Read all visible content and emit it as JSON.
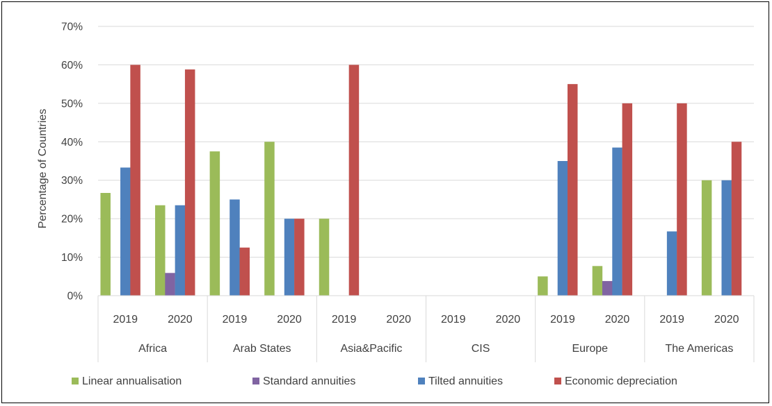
{
  "chart_data": {
    "type": "bar",
    "ylabel": "Percentage of Countries",
    "ylim": [
      0,
      70
    ],
    "yticks": [
      "0%",
      "10%",
      "20%",
      "30%",
      "40%",
      "50%",
      "60%",
      "70%"
    ],
    "ytick_values": [
      0,
      10,
      20,
      30,
      40,
      50,
      60,
      70
    ],
    "grid": true,
    "legend_position": "bottom",
    "groups": [
      {
        "name": "Africa",
        "categories": [
          "2019",
          "2020"
        ]
      },
      {
        "name": "Arab States",
        "categories": [
          "2019",
          "2020"
        ]
      },
      {
        "name": "Asia&Pacific",
        "categories": [
          "2019",
          "2020"
        ]
      },
      {
        "name": "CIS",
        "categories": [
          "2019",
          "2020"
        ]
      },
      {
        "name": "Europe",
        "categories": [
          "2019",
          "2020"
        ]
      },
      {
        "name": "The Americas",
        "categories": [
          "2019",
          "2020"
        ]
      }
    ],
    "categories": [
      "Africa 2019",
      "Africa 2020",
      "Arab States 2019",
      "Arab States 2020",
      "Asia&Pacific 2019",
      "Asia&Pacific 2020",
      "CIS 2019",
      "CIS 2020",
      "Europe 2019",
      "Europe 2020",
      "The Americas 2019",
      "The Americas 2020"
    ],
    "series": [
      {
        "name": "Linear annualisation",
        "color": "#9bbb59",
        "values": [
          26.7,
          23.5,
          37.5,
          40,
          20,
          0,
          0,
          0,
          5,
          7.7,
          0,
          30
        ]
      },
      {
        "name": "Standard annuities",
        "color": "#8064a2",
        "values": [
          0,
          5.9,
          0,
          0,
          0,
          0,
          0,
          0,
          0,
          3.8,
          0,
          0
        ]
      },
      {
        "name": "Tilted annuities",
        "color": "#4f81bd",
        "values": [
          33.3,
          23.5,
          25,
          20,
          0,
          0,
          0,
          0,
          35,
          38.5,
          16.7,
          30
        ]
      },
      {
        "name": "Economic depreciation",
        "color": "#c0504d",
        "values": [
          60,
          58.8,
          12.5,
          20,
          60,
          0,
          0,
          0,
          55,
          50,
          50,
          40
        ]
      }
    ]
  }
}
